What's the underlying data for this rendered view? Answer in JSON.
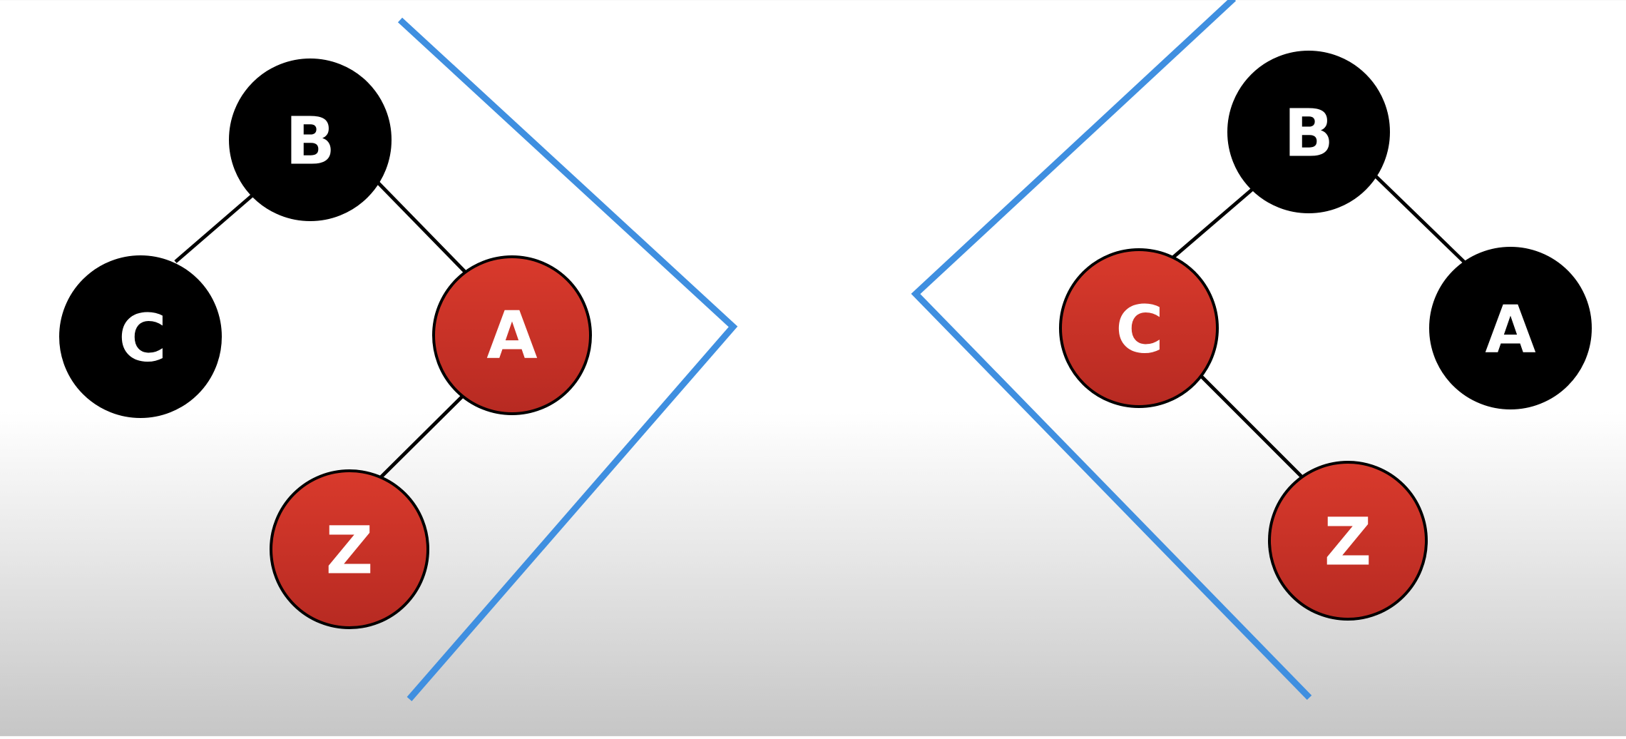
{
  "colors": {
    "black_node": "#000000",
    "red_node": "#d2352a",
    "red_node_dark": "#b32a21",
    "chevron": "#3f8fe0",
    "label": "#ffffff"
  },
  "trees": [
    {
      "name": "left-tree",
      "nodes": [
        {
          "id": "B",
          "label": "B",
          "color": "black"
        },
        {
          "id": "C",
          "label": "C",
          "color": "black"
        },
        {
          "id": "A",
          "label": "A",
          "color": "red"
        },
        {
          "id": "Z",
          "label": "Z",
          "color": "red"
        }
      ],
      "edges": [
        [
          "B",
          "C"
        ],
        [
          "B",
          "A"
        ],
        [
          "A",
          "Z"
        ]
      ]
    },
    {
      "name": "right-tree",
      "nodes": [
        {
          "id": "B",
          "label": "B",
          "color": "black"
        },
        {
          "id": "C",
          "label": "C",
          "color": "red"
        },
        {
          "id": "A",
          "label": "A",
          "color": "black"
        },
        {
          "id": "Z",
          "label": "Z",
          "color": "red"
        }
      ],
      "edges": [
        [
          "B",
          "C"
        ],
        [
          "B",
          "A"
        ],
        [
          "C",
          "Z"
        ]
      ]
    }
  ]
}
